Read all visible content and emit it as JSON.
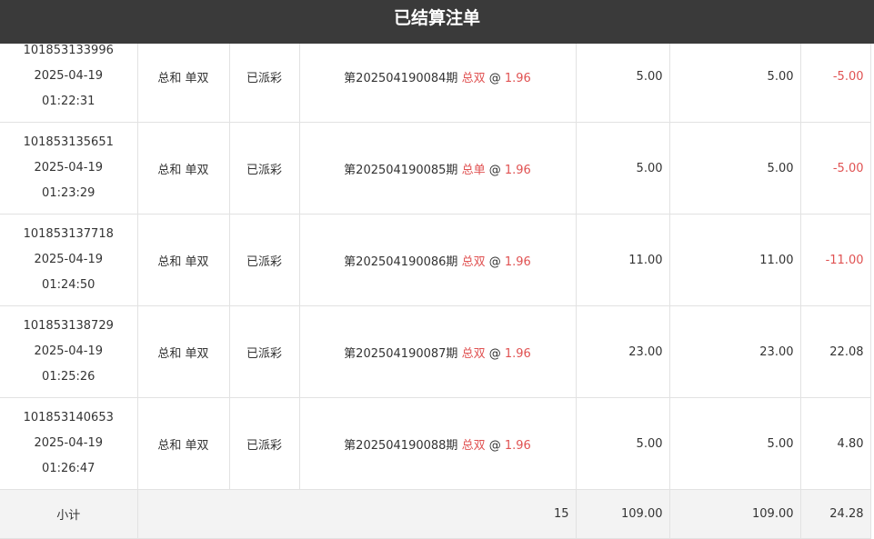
{
  "header": {
    "title": "已结算注单"
  },
  "rows": [
    {
      "id": "101853133996",
      "date": "2025-04-19",
      "time": "01:22:31",
      "type": "总和 单双",
      "status": "已派彩",
      "issue": "第202504190084期",
      "pick": "总双",
      "at": "@",
      "odds": "1.96",
      "amount": "5.00",
      "valid": "5.00",
      "result": "-5.00",
      "neg": true
    },
    {
      "id": "101853135651",
      "date": "2025-04-19",
      "time": "01:23:29",
      "type": "总和 单双",
      "status": "已派彩",
      "issue": "第202504190085期",
      "pick": "总单",
      "at": "@",
      "odds": "1.96",
      "amount": "5.00",
      "valid": "5.00",
      "result": "-5.00",
      "neg": true
    },
    {
      "id": "101853137718",
      "date": "2025-04-19",
      "time": "01:24:50",
      "type": "总和 单双",
      "status": "已派彩",
      "issue": "第202504190086期",
      "pick": "总双",
      "at": "@",
      "odds": "1.96",
      "amount": "11.00",
      "valid": "11.00",
      "result": "-11.00",
      "neg": true
    },
    {
      "id": "101853138729",
      "date": "2025-04-19",
      "time": "01:25:26",
      "type": "总和 单双",
      "status": "已派彩",
      "issue": "第202504190087期",
      "pick": "总双",
      "at": "@",
      "odds": "1.96",
      "amount": "23.00",
      "valid": "23.00",
      "result": "22.08",
      "neg": false
    },
    {
      "id": "101853140653",
      "date": "2025-04-19",
      "time": "01:26:47",
      "type": "总和 单双",
      "status": "已派彩",
      "issue": "第202504190088期",
      "pick": "总双",
      "at": "@",
      "odds": "1.96",
      "amount": "5.00",
      "valid": "5.00",
      "result": "4.80",
      "neg": false
    }
  ],
  "summary": {
    "label": "小计",
    "count": "15",
    "amount": "109.00",
    "valid": "109.00",
    "result": "24.28"
  },
  "colors": {
    "header_bg": "#3a3a3a",
    "accent_red": "#e05252"
  }
}
